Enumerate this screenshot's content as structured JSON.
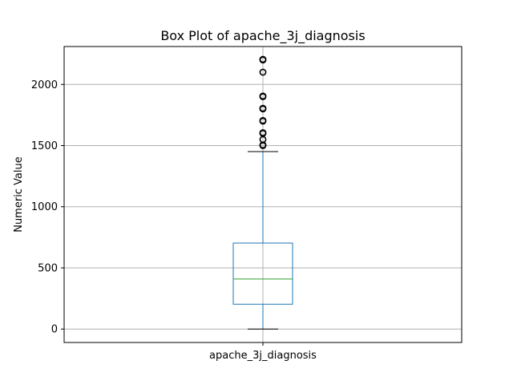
{
  "chart_data": {
    "type": "box",
    "title": "Box Plot of apache_3j_diagnosis",
    "xlabel": "",
    "ylabel": "Numeric Value",
    "categories": [
      "apache_3j_diagnosis"
    ],
    "ylim": [
      -110,
      2310
    ],
    "yticks": [
      0,
      500,
      1000,
      1500,
      2000
    ],
    "grid": true,
    "boxes": [
      {
        "name": "apache_3j_diagnosis",
        "whisker_low": 0,
        "q1": 203,
        "median": 409,
        "q3": 703,
        "whisker_high": 1451,
        "outliers": [
          1500,
          1505,
          1550,
          1600,
          1605,
          1700,
          1705,
          1800,
          1805,
          1900,
          1905,
          2100,
          2200,
          2205
        ]
      }
    ],
    "colors": {
      "box": "#1f77b4",
      "median": "#2ca02c",
      "whisker": "#1f77b4",
      "cap": "#000000",
      "outlier": "#000000",
      "grid": "#b0b0b0"
    }
  }
}
